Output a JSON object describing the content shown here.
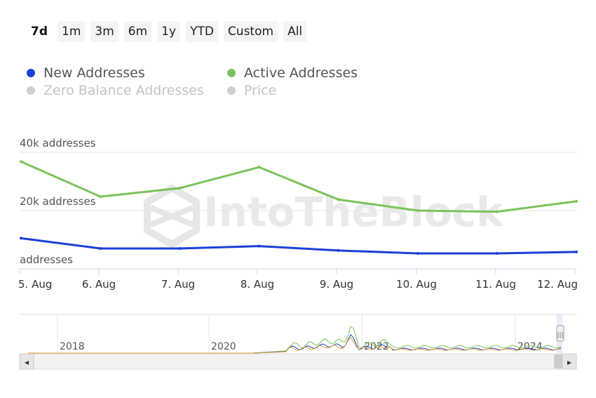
{
  "range_selector": {
    "buttons": [
      "7d",
      "1m",
      "3m",
      "6m",
      "1y",
      "YTD",
      "Custom",
      "All"
    ],
    "active": "7d"
  },
  "legend": [
    {
      "name": "New Addresses",
      "color": "#1a3fd6",
      "enabled": true
    },
    {
      "name": "Active Addresses",
      "color": "#7ac35a",
      "enabled": true
    },
    {
      "name": "Zero Balance Addresses",
      "color": "#cfcfcf",
      "enabled": false
    },
    {
      "name": "Price",
      "color": "#cfcfcf",
      "enabled": false
    }
  ],
  "watermark": "IntoTheBlock",
  "chart_data": {
    "type": "line",
    "x": [
      "5. Aug",
      "6. Aug",
      "7. Aug",
      "8. Aug",
      "9. Aug",
      "10. Aug",
      "11. Aug",
      "12. Aug"
    ],
    "series": [
      {
        "name": "New Addresses",
        "color": "#1a3fd6",
        "values": [
          10500,
          7000,
          7000,
          7800,
          6300,
          5300,
          5300,
          5800
        ]
      },
      {
        "name": "Active Addresses",
        "color": "#7ac35a",
        "values": [
          36800,
          24800,
          27700,
          34900,
          23800,
          20000,
          19600,
          23200
        ]
      }
    ],
    "y_ticks": [
      {
        "value": 0,
        "label": "addresses"
      },
      {
        "value": 20000,
        "label": "20k addresses"
      },
      {
        "value": 40000,
        "label": "40k addresses"
      }
    ],
    "ylim": [
      0,
      40000
    ],
    "grid": true
  },
  "navigator": {
    "year_labels": [
      "2018",
      "2020",
      "2022",
      "2024"
    ],
    "scroll_left_label": "◂",
    "scroll_right_label": "▸",
    "handle_label": "|||"
  }
}
